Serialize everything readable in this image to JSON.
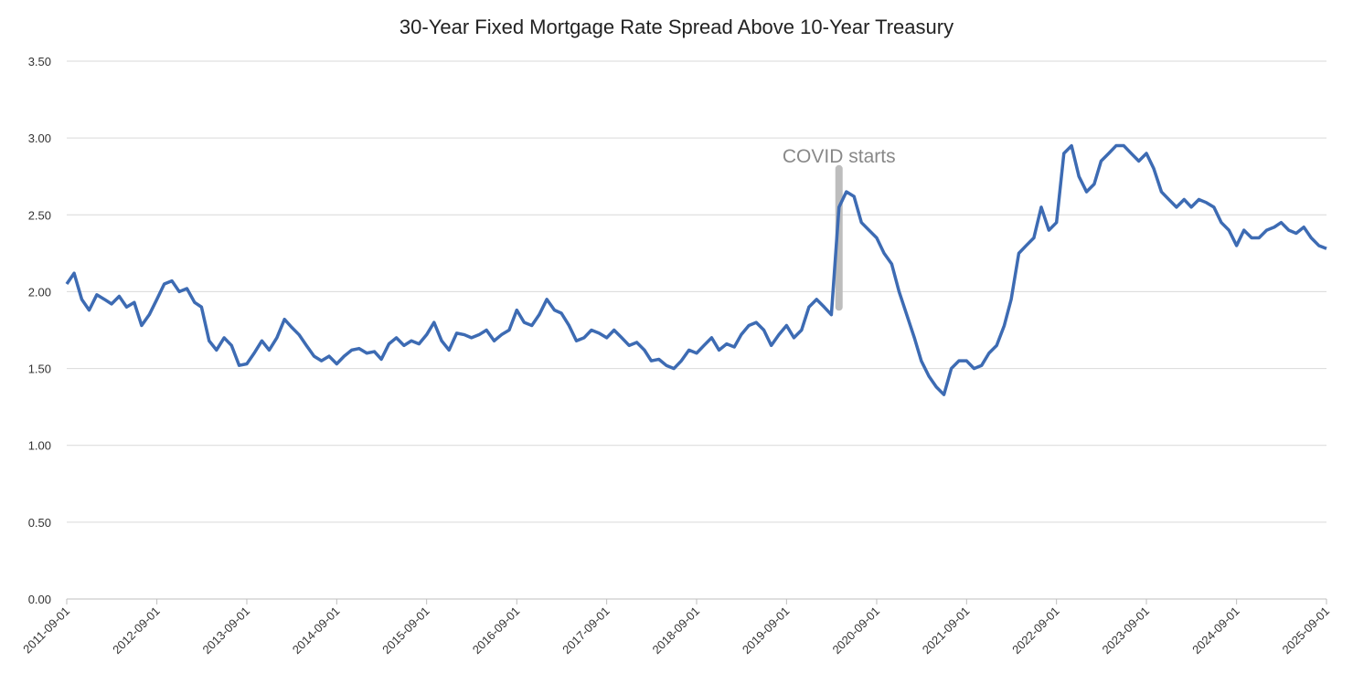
{
  "chart_data": {
    "type": "line",
    "title": "30-Year Fixed Mortgage Rate Spread Above 10-Year Treasury",
    "x": [
      "2011-09-01",
      "2011-10-01",
      "2011-11-01",
      "2011-12-01",
      "2012-01-01",
      "2012-02-01",
      "2012-03-01",
      "2012-04-01",
      "2012-05-01",
      "2012-06-01",
      "2012-07-01",
      "2012-08-01",
      "2012-09-01",
      "2012-10-01",
      "2012-11-01",
      "2012-12-01",
      "2013-01-01",
      "2013-02-01",
      "2013-03-01",
      "2013-04-01",
      "2013-05-01",
      "2013-06-01",
      "2013-07-01",
      "2013-08-01",
      "2013-09-01",
      "2013-10-01",
      "2013-11-01",
      "2013-12-01",
      "2014-01-01",
      "2014-02-01",
      "2014-03-01",
      "2014-04-01",
      "2014-05-01",
      "2014-06-01",
      "2014-07-01",
      "2014-08-01",
      "2014-09-01",
      "2014-10-01",
      "2014-11-01",
      "2014-12-01",
      "2015-01-01",
      "2015-02-01",
      "2015-03-01",
      "2015-04-01",
      "2015-05-01",
      "2015-06-01",
      "2015-07-01",
      "2015-08-01",
      "2015-09-01",
      "2015-10-01",
      "2015-11-01",
      "2015-12-01",
      "2016-01-01",
      "2016-02-01",
      "2016-03-01",
      "2016-04-01",
      "2016-05-01",
      "2016-06-01",
      "2016-07-01",
      "2016-08-01",
      "2016-09-01",
      "2016-10-01",
      "2016-11-01",
      "2016-12-01",
      "2017-01-01",
      "2017-02-01",
      "2017-03-01",
      "2017-04-01",
      "2017-05-01",
      "2017-06-01",
      "2017-07-01",
      "2017-08-01",
      "2017-09-01",
      "2017-10-01",
      "2017-11-01",
      "2017-12-01",
      "2018-01-01",
      "2018-02-01",
      "2018-03-01",
      "2018-04-01",
      "2018-05-01",
      "2018-06-01",
      "2018-07-01",
      "2018-08-01",
      "2018-09-01",
      "2018-10-01",
      "2018-11-01",
      "2018-12-01",
      "2019-01-01",
      "2019-02-01",
      "2019-03-01",
      "2019-04-01",
      "2019-05-01",
      "2019-06-01",
      "2019-07-01",
      "2019-08-01",
      "2019-09-01",
      "2019-10-01",
      "2019-11-01",
      "2019-12-01",
      "2020-01-01",
      "2020-02-01",
      "2020-03-01",
      "2020-04-01",
      "2020-05-01",
      "2020-06-01",
      "2020-07-01",
      "2020-08-01",
      "2020-09-01",
      "2020-10-01",
      "2020-11-01",
      "2020-12-01",
      "2021-01-01",
      "2021-02-01",
      "2021-03-01",
      "2021-04-01",
      "2021-05-01",
      "2021-06-01",
      "2021-07-01",
      "2021-08-01",
      "2021-09-01",
      "2021-10-01",
      "2021-11-01",
      "2021-12-01",
      "2022-01-01",
      "2022-02-01",
      "2022-03-01",
      "2022-04-01",
      "2022-05-01",
      "2022-06-01",
      "2022-07-01",
      "2022-08-01",
      "2022-09-01",
      "2022-10-01",
      "2022-11-01",
      "2022-12-01",
      "2023-01-01",
      "2023-02-01",
      "2023-03-01",
      "2023-04-01",
      "2023-05-01",
      "2023-06-01",
      "2023-07-01",
      "2023-08-01",
      "2023-09-01",
      "2023-10-01",
      "2023-11-01",
      "2023-12-01",
      "2024-01-01",
      "2024-02-01",
      "2024-03-01",
      "2024-04-01",
      "2024-05-01",
      "2024-06-01",
      "2024-07-01",
      "2024-08-01",
      "2024-09-01",
      "2024-10-01",
      "2024-11-01",
      "2024-12-01",
      "2025-01-01",
      "2025-02-01",
      "2025-03-01",
      "2025-04-01",
      "2025-05-01",
      "2025-06-01",
      "2025-07-01",
      "2025-08-01",
      "2025-09-01"
    ],
    "values": [
      2.05,
      2.12,
      1.95,
      1.88,
      1.98,
      1.95,
      1.92,
      1.97,
      1.9,
      1.93,
      1.78,
      1.85,
      1.95,
      2.05,
      2.07,
      2.0,
      2.02,
      1.93,
      1.9,
      1.68,
      1.62,
      1.7,
      1.65,
      1.52,
      1.53,
      1.6,
      1.68,
      1.62,
      1.7,
      1.82,
      1.77,
      1.72,
      1.65,
      1.58,
      1.55,
      1.58,
      1.53,
      1.58,
      1.62,
      1.63,
      1.6,
      1.61,
      1.56,
      1.66,
      1.7,
      1.65,
      1.68,
      1.66,
      1.72,
      1.8,
      1.68,
      1.62,
      1.73,
      1.72,
      1.7,
      1.72,
      1.75,
      1.68,
      1.72,
      1.75,
      1.88,
      1.8,
      1.78,
      1.85,
      1.95,
      1.88,
      1.86,
      1.78,
      1.68,
      1.7,
      1.75,
      1.73,
      1.7,
      1.75,
      1.7,
      1.65,
      1.67,
      1.62,
      1.55,
      1.56,
      1.52,
      1.5,
      1.55,
      1.62,
      1.6,
      1.65,
      1.7,
      1.62,
      1.66,
      1.64,
      1.72,
      1.78,
      1.8,
      1.75,
      1.65,
      1.72,
      1.78,
      1.7,
      1.75,
      1.9,
      1.95,
      1.9,
      1.85,
      2.55,
      2.65,
      2.62,
      2.45,
      2.4,
      2.35,
      2.25,
      2.18,
      2.0,
      1.85,
      1.7,
      1.55,
      1.45,
      1.38,
      1.33,
      1.5,
      1.55,
      1.55,
      1.5,
      1.52,
      1.6,
      1.65,
      1.78,
      1.95,
      2.25,
      2.3,
      2.35,
      2.55,
      2.4,
      2.45,
      2.9,
      2.95,
      2.75,
      2.65,
      2.7,
      2.85,
      2.9,
      2.95,
      2.95,
      2.9,
      2.85,
      2.9,
      2.8,
      2.65,
      2.6,
      2.55,
      2.6,
      2.55,
      2.6,
      2.58,
      2.55,
      2.45,
      2.4,
      2.3,
      2.4,
      2.35,
      2.35,
      2.4,
      2.42,
      2.45,
      2.4,
      2.38,
      2.42,
      2.35,
      2.3,
      2.28
    ],
    "color": "#3d6bb3",
    "xlim": [
      "2011-09-01",
      "2025-09-01"
    ],
    "xticks": [
      "2011-09-01",
      "2012-09-01",
      "2013-09-01",
      "2014-09-01",
      "2015-09-01",
      "2016-09-01",
      "2017-09-01",
      "2018-09-01",
      "2019-09-01",
      "2020-09-01",
      "2021-09-01",
      "2022-09-01",
      "2023-09-01",
      "2024-09-01",
      "2025-09-01"
    ],
    "ylim": [
      0,
      3.5
    ],
    "yticks": [
      {
        "value": 0,
        "label": "0.00"
      },
      {
        "value": 0.5,
        "label": "0.50"
      },
      {
        "value": 1,
        "label": "1.00"
      },
      {
        "value": 1.5,
        "label": "1.50"
      },
      {
        "value": 2,
        "label": "2.00"
      },
      {
        "value": 2.5,
        "label": "2.50"
      },
      {
        "value": 3,
        "label": "3.00"
      },
      {
        "value": 3.5,
        "label": "3.50"
      }
    ],
    "grid": true,
    "annotations": [
      {
        "text": "COVID starts",
        "x": "2020-04-01",
        "y_from": 1.9,
        "y_to": 2.8
      }
    ]
  }
}
